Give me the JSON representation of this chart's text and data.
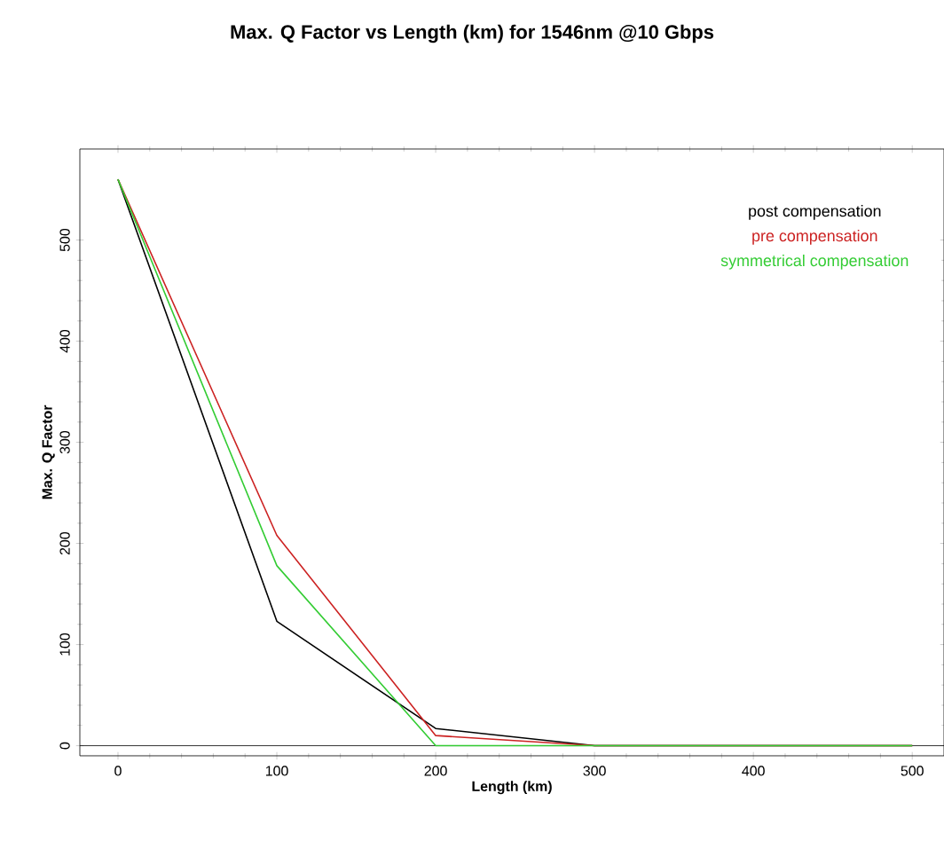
{
  "chart_data": {
    "type": "line",
    "title": "Max. Q Factor vs Length (km) for 1546nm @10 Gbps",
    "xlabel": "Length (km)",
    "ylabel": "Max. Q Factor",
    "x": [
      0,
      100,
      200,
      300,
      400,
      500
    ],
    "series": [
      {
        "name": "post compensation",
        "color": "#000000",
        "values": [
          560,
          123,
          17,
          0,
          0,
          0
        ]
      },
      {
        "name": "pre compensation",
        "color": "#cc2222",
        "values": [
          560,
          208,
          10,
          0,
          0,
          0
        ]
      },
      {
        "name": "symmetrical compensation",
        "color": "#33cc33",
        "values": [
          560,
          178,
          0,
          0,
          0,
          0
        ]
      }
    ],
    "xlim": [
      -24,
      520
    ],
    "ylim": [
      -10,
      590
    ],
    "xticks": [
      0,
      100,
      200,
      300,
      400,
      500
    ],
    "yticks": [
      0,
      100,
      200,
      300,
      400,
      500
    ],
    "grid": false,
    "legend": "top right",
    "marker": "none",
    "line_style": "solid"
  }
}
